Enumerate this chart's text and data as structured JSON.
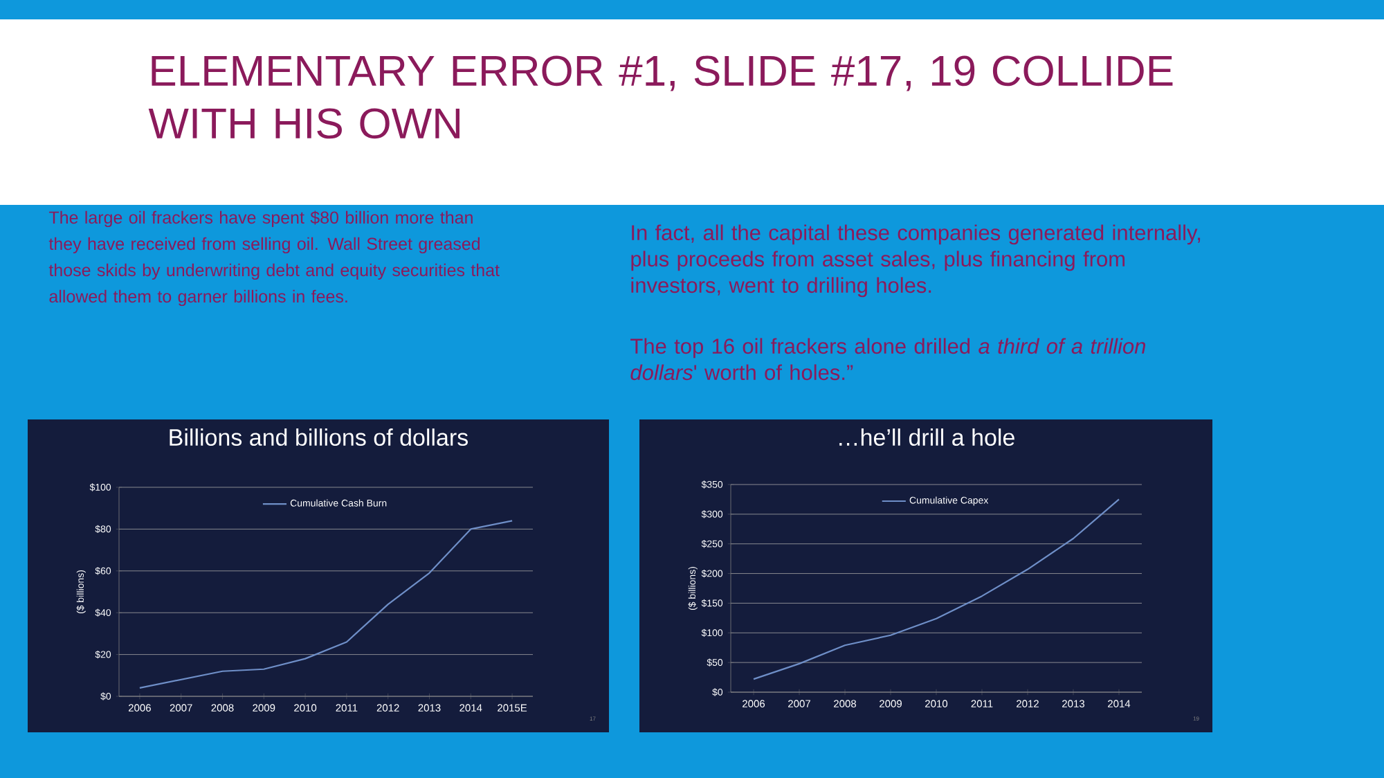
{
  "chart_data": [
    {
      "type": "other",
      "title": "ELEMENTARY ERROR #1, SLIDE #17, 19 COLLIDE WITH HIS OWN",
      "annotations": [
        "The large oil frackers have spent $80 billion more than they have received from selling oil. Wall Street greased those skids by underwriting debt and equity securities that allowed them to garner billions in fees.",
        "In fact, all the capital these companies generated internally, plus proceeds from asset sales, plus financing from investors, went to drilling holes.",
        "The top 16 oil frackers alone drilled *a third of a trillion dollars*' worth of holes.”"
      ]
    },
    {
      "type": "line",
      "title": "Billions and billions of dollars",
      "ylabel": "($ billions)",
      "categories": [
        "2006",
        "2007",
        "2008",
        "2009",
        "2010",
        "2011",
        "2012",
        "2013",
        "2014",
        "2015E"
      ],
      "series": [
        {
          "name": "Cumulative Cash Burn",
          "color": "#6f8fc8",
          "values": [
            4,
            8,
            12,
            13,
            18,
            26,
            44,
            59,
            80,
            84
          ]
        }
      ],
      "ylim": [
        0,
        100
      ],
      "yticks": [
        {
          "value": 0,
          "label": "$0"
        },
        {
          "value": 20,
          "label": "$20"
        },
        {
          "value": 40,
          "label": "$40"
        },
        {
          "value": 60,
          "label": "$60"
        },
        {
          "value": 80,
          "label": "$80"
        },
        {
          "value": 100,
          "label": "$100"
        }
      ],
      "grid": "y",
      "legend": "top",
      "line_style": "solid",
      "annotations": [
        "17"
      ]
    },
    {
      "type": "line",
      "title": "…he’ll drill a hole",
      "ylabel": "($ billions)",
      "categories": [
        "2006",
        "2007",
        "2008",
        "2009",
        "2010",
        "2011",
        "2012",
        "2013",
        "2014"
      ],
      "series": [
        {
          "name": "Cumulative Capex",
          "color": "#6f8fc8",
          "values": [
            22,
            48,
            79,
            96,
            124,
            162,
            207,
            259,
            325
          ]
        }
      ],
      "ylim": [
        0,
        350
      ],
      "yticks": [
        {
          "value": 0,
          "label": "$0"
        },
        {
          "value": 50,
          "label": "$50"
        },
        {
          "value": 100,
          "label": "$100"
        },
        {
          "value": 150,
          "label": "$150"
        },
        {
          "value": 200,
          "label": "$200"
        },
        {
          "value": 250,
          "label": "$250"
        },
        {
          "value": 300,
          "label": "$300"
        },
        {
          "value": 350,
          "label": "$350"
        }
      ],
      "grid": "y",
      "legend": "top",
      "line_style": "solid",
      "annotations": [
        "19"
      ]
    }
  ]
}
